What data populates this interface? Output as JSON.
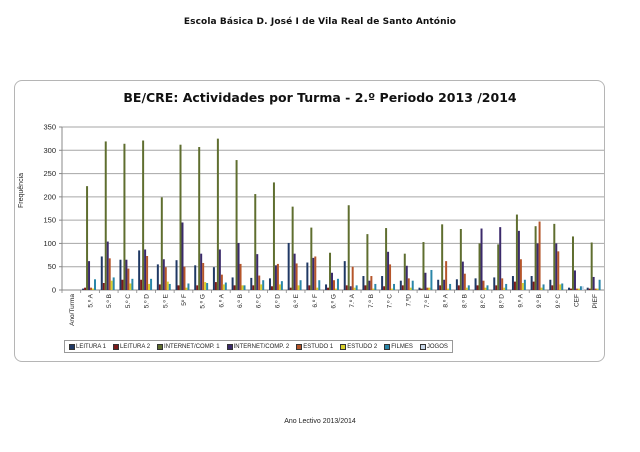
{
  "header": {
    "school_name": "Escola Básica D. José I de Vila Real de Santo António"
  },
  "footer": {
    "text": "Ano Lectivo 2013/2014"
  },
  "colors": {
    "LEITURA 1": "#1f3864",
    "LEITURA 2": "#7b1a1a",
    "INTERNET/COMP. 1": "#5f6e2f",
    "INTERNET/COMP. 2": "#3b2a6b",
    "ESTUDO 1": "#b5552a",
    "ESTUDO 2": "#d8cf2a",
    "FILMES": "#2a86a8",
    "JOGOS": "#c7d6e8",
    "grid": "#a6a6a6",
    "frame": "#b5b5b5"
  },
  "chart_data": {
    "type": "bar",
    "title": "BE/CRE: Actividades por Turma - 2.º Periodo 2013 /2014",
    "xlabel": "",
    "ylabel": "Frequência",
    "ylim": [
      0,
      350
    ],
    "yticks": [
      0,
      50,
      100,
      150,
      200,
      250,
      300,
      350
    ],
    "grid": true,
    "legend_position": "bottom",
    "categories": [
      "Ano/Turma",
      "5.º A",
      "5.º B",
      "5.º C",
      "5.º D",
      "5.º E",
      "5º F",
      "5.º G",
      "6.º A",
      "6.º B",
      "6.º C",
      "6.º D",
      "6.º E",
      "6.º F",
      "6.º G",
      "7.º A",
      "7.º B",
      "7.º C",
      "7.ºD",
      "7.º E",
      "8.º A",
      "8.º B",
      "8.º C",
      "8.º D",
      "9.º A",
      "9.º B",
      "9.º C",
      "CEF",
      "PIEF"
    ],
    "series": [
      {
        "name": "LEITURA 1",
        "values": [
          0,
          3,
          72,
          65,
          85,
          55,
          64,
          53,
          49,
          27,
          26,
          25,
          101,
          59,
          12,
          62,
          30,
          30,
          20,
          5,
          22,
          23,
          25,
          27,
          30,
          30,
          22,
          5,
          5
        ]
      },
      {
        "name": "LEITURA 2",
        "values": [
          0,
          5,
          15,
          22,
          22,
          12,
          10,
          10,
          17,
          10,
          10,
          8,
          5,
          10,
          5,
          10,
          10,
          8,
          10,
          3,
          10,
          10,
          10,
          10,
          18,
          18,
          10,
          3,
          3
        ]
      },
      {
        "name": "INTERNET/COMP. 1",
        "values": [
          0,
          223,
          319,
          314,
          321,
          199,
          312,
          307,
          325,
          279,
          206,
          231,
          179,
          134,
          80,
          182,
          120,
          133,
          78,
          103,
          141,
          131,
          100,
          98,
          162,
          137,
          142,
          115,
          102
        ]
      },
      {
        "name": "INTERNET/COMP. 2",
        "values": [
          0,
          62,
          104,
          65,
          87,
          66,
          145,
          78,
          87,
          101,
          77,
          53,
          78,
          69,
          37,
          8,
          20,
          82,
          52,
          37,
          22,
          61,
          132,
          135,
          127,
          100,
          100,
          42,
          28
        ]
      },
      {
        "name": "ESTUDO 1",
        "values": [
          0,
          5,
          68,
          46,
          73,
          49,
          50,
          58,
          33,
          56,
          31,
          56,
          57,
          72,
          21,
          50,
          30,
          55,
          25,
          5,
          62,
          35,
          20,
          25,
          66,
          147,
          83,
          3,
          3
        ]
      },
      {
        "name": "ESTUDO 2",
        "values": [
          0,
          3,
          20,
          14,
          13,
          18,
          5,
          17,
          12,
          10,
          12,
          12,
          10,
          5,
          3,
          5,
          3,
          3,
          5,
          5,
          3,
          5,
          5,
          5,
          15,
          5,
          12,
          3,
          3
        ]
      },
      {
        "name": "FILMES",
        "values": [
          0,
          23,
          27,
          24,
          24,
          13,
          14,
          15,
          16,
          10,
          21,
          19,
          21,
          21,
          24,
          10,
          13,
          13,
          20,
          43,
          13,
          10,
          10,
          13,
          22,
          12,
          14,
          8,
          22
        ]
      },
      {
        "name": "JOGOS",
        "values": [
          0,
          0,
          0,
          0,
          0,
          0,
          0,
          0,
          0,
          0,
          0,
          0,
          0,
          0,
          0,
          0,
          0,
          0,
          0,
          0,
          0,
          0,
          0,
          0,
          0,
          0,
          0,
          8,
          0
        ]
      }
    ]
  }
}
